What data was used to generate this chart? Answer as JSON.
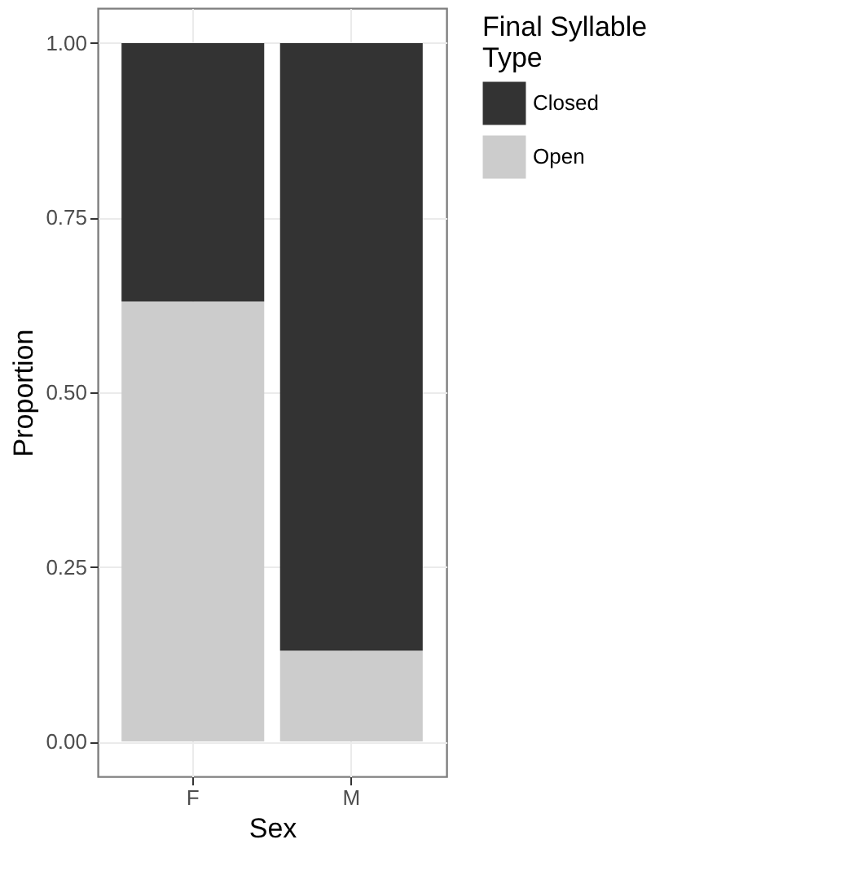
{
  "chart_data": {
    "type": "bar",
    "stacked": true,
    "xlabel": "Sex",
    "ylabel": "Proportion",
    "legend_title": "Final Syllable Type",
    "categories": [
      "F",
      "M"
    ],
    "series": [
      {
        "name": "Open",
        "color": "#cccccc",
        "values": [
          0.63,
          0.13
        ]
      },
      {
        "name": "Closed",
        "color": "#333333",
        "values": [
          0.37,
          0.87
        ]
      }
    ],
    "ylim": [
      -0.05,
      1.05
    ],
    "yticks": [
      {
        "value": 0,
        "label": "0.00"
      },
      {
        "value": 0.25,
        "label": "0.25"
      },
      {
        "value": 0.5,
        "label": "0.50"
      },
      {
        "value": 0.75,
        "label": "0.75"
      },
      {
        "value": 1,
        "label": "1.00"
      }
    ],
    "grid": true,
    "legend": "right"
  }
}
